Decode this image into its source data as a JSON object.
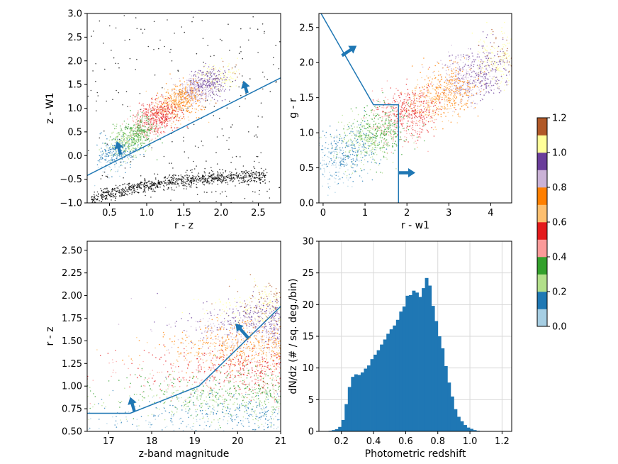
{
  "colorbar": {
    "ticks": [
      "0.0",
      "0.2",
      "0.4",
      "0.6",
      "0.8",
      "1.0",
      "1.2"
    ],
    "range": [
      0.0,
      1.2
    ],
    "colors": [
      "#a6cee3",
      "#1f78b4",
      "#b2df8a",
      "#33a02c",
      "#fb9a99",
      "#e31a1c",
      "#fdbf6f",
      "#ff7f00",
      "#cab2d6",
      "#6a3d9a",
      "#ffff99",
      "#b15928"
    ]
  },
  "chart_data": [
    {
      "type": "scatter",
      "xlabel": "r - z",
      "ylabel": "z - W1",
      "xlim": [
        0.2,
        2.8
      ],
      "ylim": [
        -1.0,
        3.0
      ],
      "xticks": [
        "0.5",
        "1.0",
        "1.5",
        "2.0",
        "2.5"
      ],
      "yticks": [
        "−1.0",
        "−0.5",
        "0.0",
        "0.5",
        "1.0",
        "1.5",
        "2.0",
        "2.5",
        "3.0"
      ],
      "cut_line": [
        [
          0.2,
          -0.42
        ],
        [
          2.8,
          1.64
        ]
      ],
      "arrows": [
        {
          "from": [
            0.65,
            0.02
          ],
          "to": [
            0.6,
            0.3
          ]
        },
        {
          "from": [
            2.35,
            1.32
          ],
          "to": [
            2.3,
            1.58
          ]
        }
      ]
    },
    {
      "type": "scatter",
      "xlabel": "r - w1",
      "ylabel": "g - r",
      "xlim": [
        -0.1,
        4.5
      ],
      "ylim": [
        0.0,
        2.7
      ],
      "xticks": [
        "0",
        "1",
        "2",
        "3",
        "4"
      ],
      "yticks": [
        "0.0",
        "0.5",
        "1.0",
        "1.5",
        "2.0",
        "2.5"
      ],
      "cut_line": [
        [
          -0.05,
          2.7
        ],
        [
          1.2,
          1.4
        ],
        [
          1.8,
          1.4
        ],
        [
          1.8,
          0.0
        ]
      ],
      "arrows": [
        {
          "from": [
            0.45,
            2.1
          ],
          "to": [
            0.8,
            2.24
          ]
        },
        {
          "from": [
            1.8,
            0.43
          ],
          "to": [
            2.2,
            0.43
          ]
        }
      ]
    },
    {
      "type": "scatter",
      "xlabel": "z-band magnitude",
      "ylabel": "r - z",
      "xlim": [
        16.5,
        21.0
      ],
      "ylim": [
        0.5,
        2.6
      ],
      "xticks": [
        "17",
        "18",
        "19",
        "20",
        "21"
      ],
      "yticks": [
        "0.50",
        "0.75",
        "1.00",
        "1.25",
        "1.50",
        "1.75",
        "2.00",
        "2.25",
        "2.50"
      ],
      "cut_line": [
        [
          16.5,
          0.7
        ],
        [
          17.5,
          0.7
        ],
        [
          19.1,
          1.0
        ],
        [
          21.0,
          1.88
        ]
      ],
      "arrows": [
        {
          "from": [
            17.6,
            0.72
          ],
          "to": [
            17.5,
            0.88
          ]
        },
        {
          "from": [
            20.25,
            1.53
          ],
          "to": [
            19.95,
            1.69
          ]
        }
      ]
    },
    {
      "type": "bar",
      "xlabel": "Photometric redshift",
      "ylabel": "dN/dz (# / sq. deg./bin)",
      "xlim": [
        0.06,
        1.26
      ],
      "ylim": [
        0,
        30
      ],
      "xticks": [
        "0.2",
        "0.4",
        "0.6",
        "0.8",
        "1.0",
        "1.2"
      ],
      "yticks": [
        "0",
        "5",
        "10",
        "15",
        "20",
        "25",
        "30"
      ],
      "bin_start": 0.06,
      "bin_width": 0.02,
      "values": [
        0.02,
        0.03,
        0.05,
        0.1,
        0.2,
        0.35,
        0.7,
        1.8,
        4.3,
        7.0,
        8.6,
        9.0,
        8.9,
        9.3,
        9.9,
        10.4,
        11.4,
        12.1,
        12.8,
        13.7,
        14.5,
        15.4,
        16.1,
        16.7,
        17.6,
        18.9,
        19.7,
        21.4,
        21.5,
        22.2,
        21.9,
        21.2,
        22.6,
        24.2,
        23.0,
        19.8,
        17.4,
        15.0,
        13.1,
        10.3,
        7.7,
        5.5,
        3.5,
        2.3,
        1.6,
        1.0,
        0.6,
        0.4,
        0.2,
        0.1
      ],
      "grid": true
    }
  ]
}
